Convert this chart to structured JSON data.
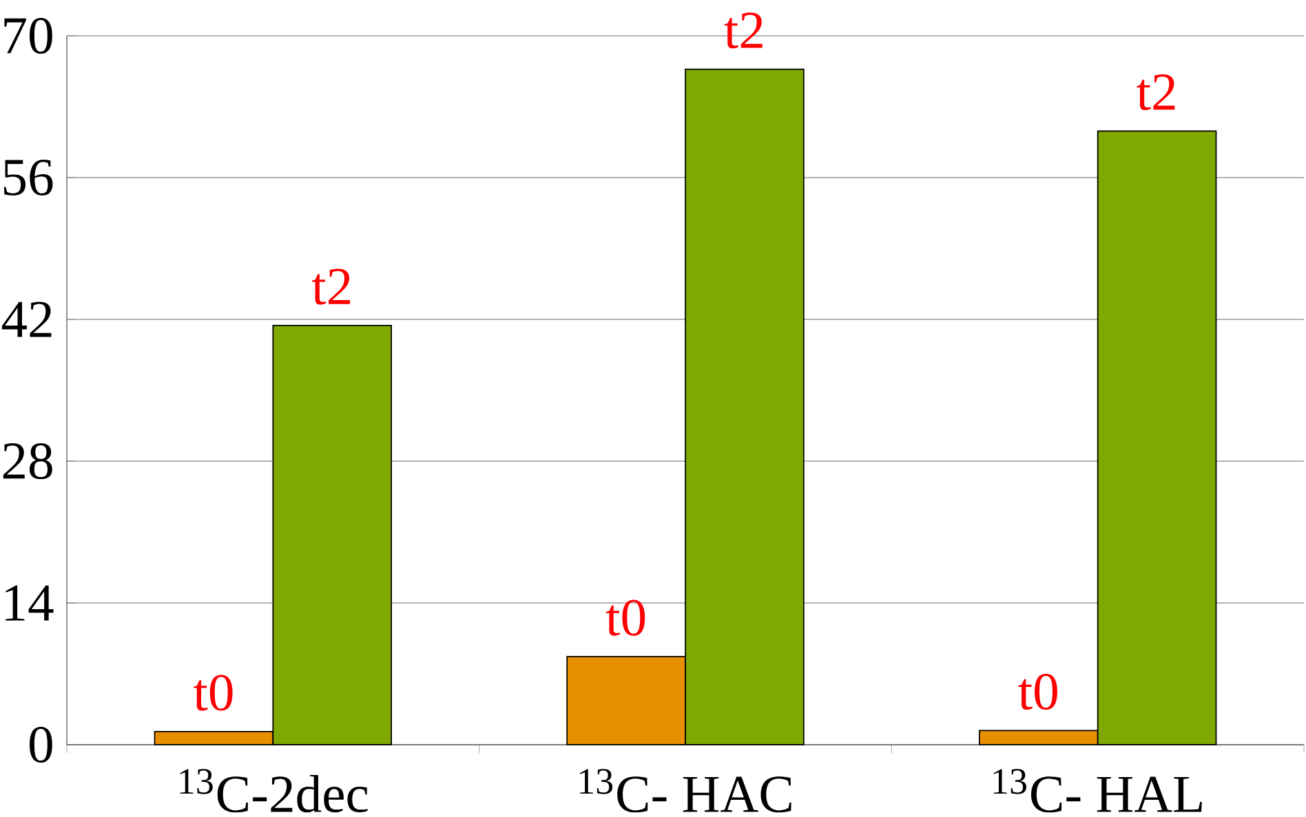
{
  "chart_data": {
    "type": "bar",
    "categories": [
      "$^{13}$C-2dec",
      "$^{13}$C- HAC",
      "$^{13}$C- HAL"
    ],
    "series": [
      {
        "name": "t0",
        "color": "#e88f00",
        "values": [
          1.3,
          8.7,
          1.4
        ]
      },
      {
        "name": "t2",
        "color": "#7fa800",
        "values": [
          41.4,
          66.7,
          60.6
        ]
      }
    ],
    "ylim": [
      0,
      70
    ],
    "yticks": [
      0,
      14,
      28,
      42,
      56,
      70
    ],
    "grid": "y"
  }
}
